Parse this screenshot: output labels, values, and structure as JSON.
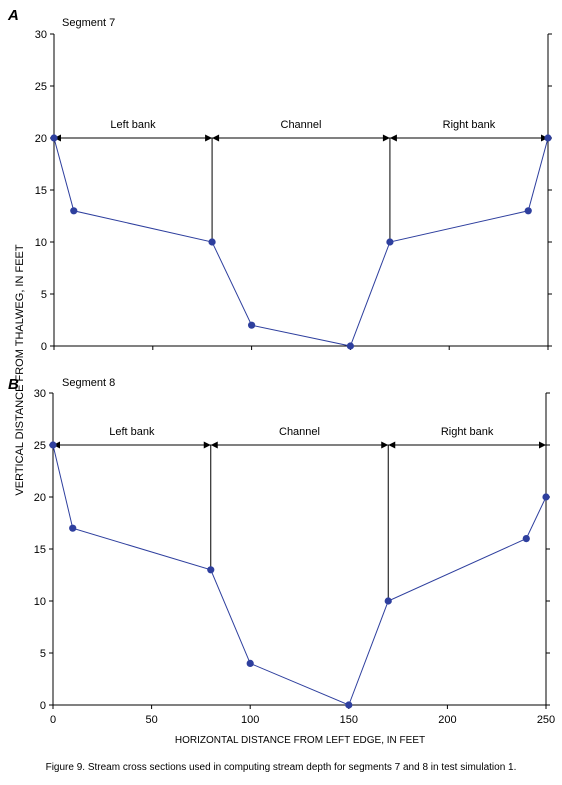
{
  "figure": {
    "xlabel": "HORIZONTAL DISTANCE FROM LEFT EDGE, IN FEET",
    "ylabel": "VERTICAL DISTANCE FROM THALWEG, IN FEET",
    "caption": "Figure 9. Stream cross sections used in computing stream depth for segments 7 and 8 in test simulation 1.",
    "series_color": "#2E3F9E"
  },
  "chart_data": [
    {
      "type": "line",
      "panel_letter": "A",
      "title": "Segment 7",
      "xlim": [
        0,
        250
      ],
      "ylim": [
        0,
        30
      ],
      "x_ticks": [
        0,
        50,
        100,
        150,
        200,
        250
      ],
      "y_ticks": [
        0,
        5,
        10,
        15,
        20,
        25,
        30
      ],
      "x": [
        0,
        10,
        80,
        100,
        150,
        170,
        240,
        250
      ],
      "y": [
        20,
        13,
        10,
        2,
        0,
        10,
        13,
        20
      ],
      "zones": {
        "level": 20,
        "boundaries": [
          0,
          80,
          170,
          250
        ],
        "labels": [
          "Left bank",
          "Channel",
          "Right bank"
        ],
        "boundary_bottoms": [
          10,
          10
        ]
      }
    },
    {
      "type": "line",
      "panel_letter": "B",
      "title": "Segment 8",
      "xlim": [
        0,
        250
      ],
      "ylim": [
        0,
        30
      ],
      "x_ticks": [
        0,
        50,
        100,
        150,
        200,
        250
      ],
      "y_ticks": [
        0,
        5,
        10,
        15,
        20,
        25,
        30
      ],
      "x": [
        0,
        10,
        80,
        100,
        150,
        170,
        240,
        250
      ],
      "y": [
        25,
        17,
        13,
        4,
        0,
        10,
        16,
        20
      ],
      "zones": {
        "level": 25,
        "boundaries": [
          0,
          80,
          170,
          250
        ],
        "labels": [
          "Left bank",
          "Channel",
          "Right bank"
        ],
        "boundary_bottoms": [
          13,
          10
        ]
      }
    }
  ]
}
